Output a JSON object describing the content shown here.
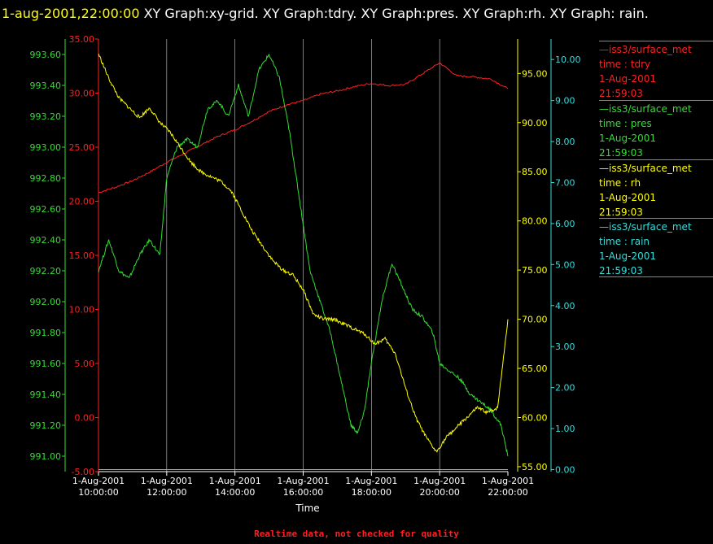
{
  "title": {
    "timestamp": "1-aug-2001,22:00:00",
    "text": "  XY Graph:xy-grid.  XY Graph:tdry.  XY Graph:pres.  XY Graph:rh.  XY Graph: rain."
  },
  "legend": [
    {
      "name": "—iss3/surface_met",
      "line1": "time : tdry",
      "line2": "1-Aug-2001",
      "line3": "21:59:03",
      "color": "#ff2020"
    },
    {
      "name": "—iss3/surface_met",
      "line1": "time : pres",
      "line2": "1-Aug-2001",
      "line3": "21:59:03",
      "color": "#33dd33"
    },
    {
      "name": "—iss3/surface_met",
      "line1": "time : rh",
      "line2": "1-Aug-2001",
      "line3": "21:59:03",
      "color": "#ffff00"
    },
    {
      "name": "—iss3/surface_met",
      "line1": "time : rain",
      "line2": "1-Aug-2001",
      "line3": "21:59:03",
      "color": "#33dddd"
    }
  ],
  "footer": "Realtime data, not checked for quality",
  "chart_data": {
    "type": "line",
    "xlabel": "Time",
    "x_ticks": [
      {
        "date": "1-Aug-2001",
        "time": "10:00:00",
        "hour": 10
      },
      {
        "date": "1-Aug-2001",
        "time": "12:00:00",
        "hour": 12
      },
      {
        "date": "1-Aug-2001",
        "time": "14:00:00",
        "hour": 14
      },
      {
        "date": "1-Aug-2001",
        "time": "16:00:00",
        "hour": 16
      },
      {
        "date": "1-Aug-2001",
        "time": "18:00:00",
        "hour": 18
      },
      {
        "date": "1-Aug-2001",
        "time": "20:00:00",
        "hour": 20
      },
      {
        "date": "1-Aug-2001",
        "time": "22:00:00",
        "hour": 22
      }
    ],
    "xlim": [
      10,
      22
    ],
    "grid": true,
    "axes": {
      "tdry": {
        "color": "#ff2020",
        "ylim": [
          -5,
          35
        ],
        "ticks": [
          "-5.00",
          "0.00",
          "5.00",
          "10.00",
          "15.00",
          "20.00",
          "25.00",
          "30.00",
          "35.00"
        ]
      },
      "pres": {
        "color": "#33dd33",
        "ylim": [
          990.9,
          993.7
        ],
        "ticks": [
          "991.00",
          "991.20",
          "991.40",
          "991.60",
          "991.80",
          "992.00",
          "992.20",
          "992.40",
          "992.60",
          "992.80",
          "993.00",
          "993.20",
          "993.40",
          "993.60"
        ]
      },
      "rh": {
        "color": "#ffff00",
        "ylim": [
          54.5,
          98.5
        ],
        "ticks": [
          "55.00",
          "60.00",
          "65.00",
          "70.00",
          "75.00",
          "80.00",
          "85.00",
          "90.00",
          "95.00"
        ]
      },
      "rain": {
        "color": "#33dddd",
        "ylim": [
          -0.05,
          10.5
        ],
        "ticks": [
          "0.00",
          "1.00",
          "2.00",
          "3.00",
          "4.00",
          "5.00",
          "6.00",
          "7.00",
          "8.00",
          "9.00",
          "10.00"
        ]
      }
    },
    "series": [
      {
        "name": "tdry",
        "axis": "tdry",
        "color": "#ff2020",
        "x": [
          10,
          10.5,
          11,
          11.5,
          12,
          12.5,
          13,
          13.5,
          14,
          14.5,
          15,
          15.5,
          16,
          16.5,
          17,
          17.5,
          18,
          18.5,
          19,
          19.5,
          20,
          20.5,
          21,
          21.5,
          22
        ],
        "y": [
          20.8,
          21.3,
          21.9,
          22.7,
          23.6,
          24.4,
          25.2,
          26.0,
          26.6,
          27.4,
          28.3,
          28.9,
          29.3,
          29.9,
          30.2,
          30.6,
          30.9,
          30.7,
          30.8,
          31.8,
          32.8,
          31.6,
          31.5,
          31.3,
          30.4
        ]
      },
      {
        "name": "pres",
        "axis": "pres",
        "color": "#33dd33",
        "x": [
          10,
          10.3,
          10.6,
          10.9,
          11.2,
          11.5,
          11.8,
          12,
          12.3,
          12.6,
          12.9,
          13.2,
          13.5,
          13.8,
          14.1,
          14.4,
          14.7,
          15,
          15.3,
          15.6,
          15.8,
          16,
          16.2,
          16.5,
          16.8,
          17.1,
          17.4,
          17.6,
          17.8,
          18,
          18.3,
          18.6,
          18.9,
          19.2,
          19.5,
          19.8,
          20,
          20.3,
          20.6,
          20.9,
          21.2,
          21.5,
          21.8,
          22
        ],
        "y": [
          992.2,
          992.4,
          992.2,
          992.15,
          992.3,
          992.4,
          992.3,
          992.8,
          993.0,
          993.05,
          993.0,
          993.25,
          993.3,
          993.2,
          993.4,
          993.2,
          993.5,
          993.6,
          993.45,
          993.1,
          992.8,
          992.5,
          992.2,
          992.0,
          991.8,
          991.5,
          991.2,
          991.15,
          991.3,
          991.6,
          992.0,
          992.25,
          992.1,
          991.95,
          991.9,
          991.8,
          991.6,
          991.55,
          991.5,
          991.4,
          991.35,
          991.3,
          991.2,
          991.0
        ]
      },
      {
        "name": "rh",
        "axis": "rh",
        "color": "#ffff00",
        "x": [
          10,
          10.3,
          10.6,
          10.9,
          11.2,
          11.5,
          11.8,
          12.1,
          12.4,
          12.7,
          13,
          13.3,
          13.6,
          13.9,
          14.2,
          14.5,
          14.8,
          15.1,
          15.4,
          15.7,
          16,
          16.3,
          16.6,
          16.9,
          17.2,
          17.5,
          17.8,
          18.1,
          18.4,
          18.7,
          19,
          19.3,
          19.6,
          19.9,
          20.2,
          20.5,
          20.8,
          21.1,
          21.4,
          21.7,
          22
        ],
        "y": [
          97,
          94.5,
          92.5,
          91.5,
          90.5,
          91.5,
          90,
          89,
          87.5,
          86,
          85,
          84.5,
          84,
          83,
          81,
          79,
          77.5,
          76,
          75,
          74.5,
          73,
          70.5,
          70,
          70,
          69.5,
          69,
          68.5,
          67.5,
          68,
          66.5,
          63,
          60,
          58,
          56.5,
          58,
          59,
          60,
          61,
          60.5,
          61,
          70
        ]
      },
      {
        "name": "rain",
        "axis": "rain",
        "color": "#33dddd",
        "x": [
          10,
          22
        ],
        "y": [
          0,
          0
        ]
      }
    ]
  }
}
